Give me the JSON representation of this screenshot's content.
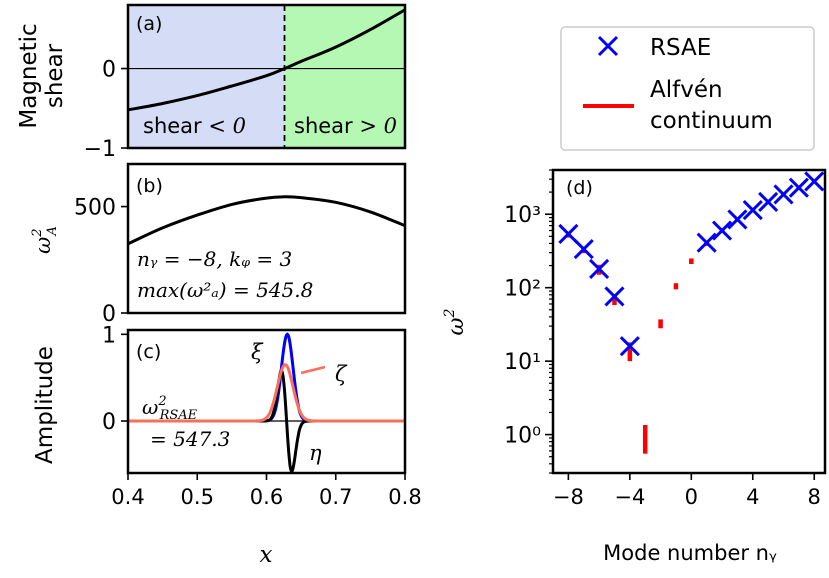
{
  "chart_data": [
    {
      "panel": "a",
      "type": "line",
      "panel_label": "(a)",
      "ylabel_line1": "Magnetic",
      "ylabel_line2": "shear",
      "xlim": [
        0.4,
        0.8
      ],
      "ylim": [
        -1,
        0.8
      ],
      "yticks": [
        {
          "v": -1,
          "label": "−1"
        },
        {
          "v": 0,
          "label": "0"
        }
      ],
      "x": [
        0.4,
        0.45,
        0.5,
        0.55,
        0.6,
        0.626,
        0.65,
        0.7,
        0.75,
        0.8
      ],
      "y": [
        -0.52,
        -0.44,
        -0.34,
        -0.22,
        -0.09,
        0.0,
        0.09,
        0.27,
        0.49,
        0.74
      ],
      "divider_x": 0.626,
      "regions": [
        {
          "name": "negative",
          "color": "#d4dcf6",
          "label": "shear",
          "label_math": "< 0"
        },
        {
          "name": "positive",
          "color": "#b4f8b4",
          "label": "shear",
          "label_math": "> 0"
        }
      ]
    },
    {
      "panel": "b",
      "type": "line",
      "panel_label": "(b)",
      "ylabel_base": "ω",
      "ylabel_sup": "2",
      "ylabel_sub": "A",
      "xlim": [
        0.4,
        0.8
      ],
      "ylim": [
        0,
        700
      ],
      "yticks": [
        {
          "v": 0,
          "label": "0"
        },
        {
          "v": 500,
          "label": "500"
        }
      ],
      "x": [
        0.4,
        0.45,
        0.5,
        0.55,
        0.6,
        0.626,
        0.65,
        0.7,
        0.75,
        0.8
      ],
      "y": [
        325,
        400,
        460,
        510,
        540,
        545.8,
        542,
        520,
        475,
        410
      ],
      "annotation1": "nᵧ = −8, kᵩ = 3",
      "annotation2": "max(ω²ₐ) = 545.8"
    },
    {
      "panel": "c",
      "type": "line",
      "panel_label": "(c)",
      "ylabel": "Amplitude",
      "xlabel": "x",
      "xlim": [
        0.4,
        0.8
      ],
      "ylim": [
        -0.6,
        1.05
      ],
      "yticks": [
        {
          "v": 0,
          "label": "0"
        },
        {
          "v": 1,
          "label": "1"
        }
      ],
      "xticks": [
        0.4,
        0.5,
        0.6,
        0.7,
        0.8
      ],
      "xticklabels": [
        "0.4",
        "0.5",
        "0.6",
        "0.7",
        "0.8"
      ],
      "series": [
        {
          "name": "ξ",
          "color": "#0000ff",
          "kind": "gauss",
          "center": 0.63,
          "width": 0.012,
          "amp": 1.0
        },
        {
          "name": "ζ",
          "color": "#fa6f5a",
          "kind": "gauss",
          "center": 0.627,
          "width": 0.016,
          "amp": 0.65
        },
        {
          "name": "η",
          "color": "#000000",
          "kind": "dgauss",
          "center": 0.629,
          "width": 0.0105,
          "amp": 0.58
        }
      ],
      "freq_label_base": "ω",
      "freq_label_sup": "2",
      "freq_label_sub": "RSAE",
      "freq_value": "= 547.3"
    },
    {
      "panel": "d",
      "type": "scatter",
      "panel_label": "(d)",
      "yscale": "log",
      "xlabel": "Mode number nᵧ",
      "ylabel_base": "ω",
      "ylabel_sup": "2",
      "xlim": [
        -9,
        8.7
      ],
      "ylim": [
        0.3,
        4000
      ],
      "xticks": [
        -8,
        -4,
        0,
        4,
        8
      ],
      "xticklabels": [
        "−8",
        "−4",
        "0",
        "4",
        "8"
      ],
      "yticks": [
        1,
        10,
        100,
        1000
      ],
      "yticklabels": [
        "10⁰",
        "10¹",
        "10²",
        "10³"
      ],
      "rsae": {
        "name": "RSAE",
        "color": "#0000ff",
        "n": [
          -8,
          -7,
          -6,
          -5,
          -4,
          1,
          2,
          3,
          4,
          5,
          6,
          7,
          8
        ],
        "omega2": [
          540,
          335,
          180,
          76,
          16,
          410,
          600,
          850,
          1140,
          1470,
          1860,
          2300,
          2800
        ]
      },
      "continuum": {
        "name_line1": "Alfvén",
        "name_line2": "continuum",
        "color": "#ff0000",
        "n": [
          -8,
          -7,
          -6,
          -5,
          -4,
          -3,
          -2,
          -1,
          0,
          1,
          2,
          3,
          4,
          5,
          6,
          7,
          8
        ],
        "lo": [
          480,
          295,
          150,
          58,
          10,
          0.55,
          28,
          95,
          210,
          370,
          560,
          800,
          1090,
          1420,
          1800,
          2250,
          2750
        ],
        "hi": [
          570,
          360,
          205,
          82,
          18,
          1.35,
          37,
          115,
          250,
          415,
          620,
          880,
          1180,
          1520,
          1920,
          2380,
          2950
        ]
      }
    }
  ]
}
